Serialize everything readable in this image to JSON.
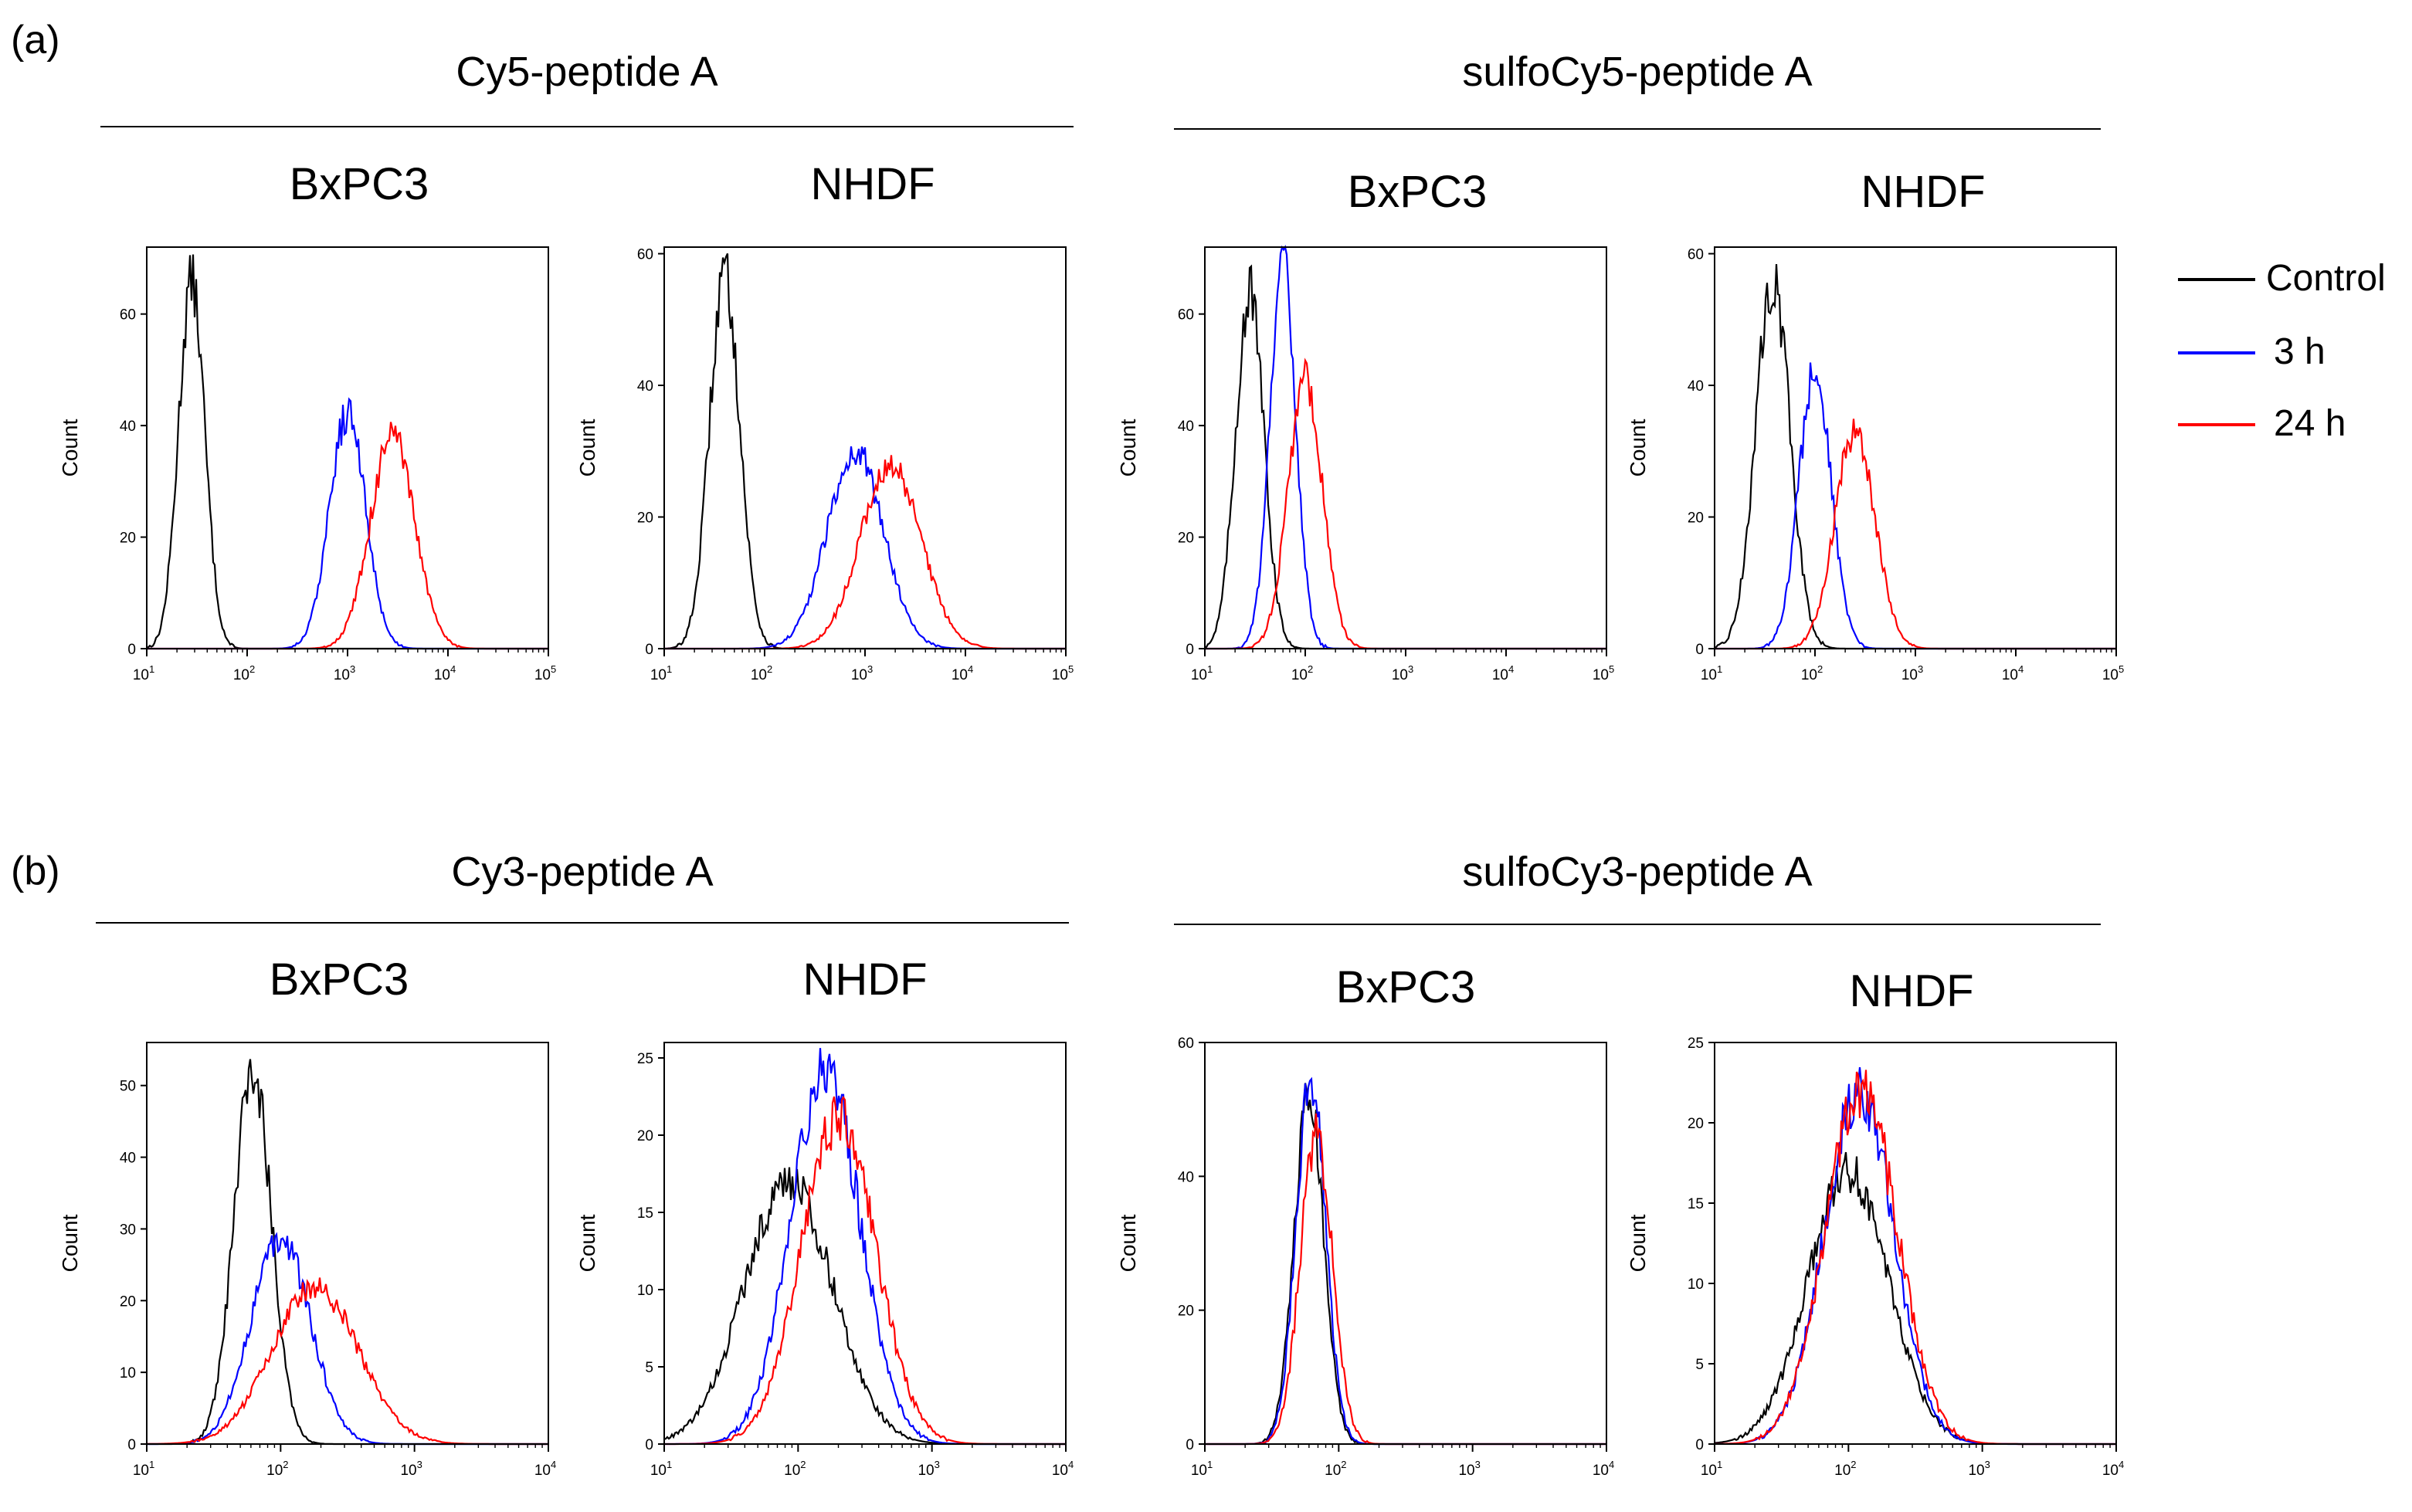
{
  "panels": [
    {
      "letter": "(a)",
      "groups": [
        {
          "title": "Cy5-peptide A",
          "cells": [
            {
              "title": "BxPC3",
              "ylabel": "Count",
              "chart": 0
            },
            {
              "title": "NHDF",
              "ylabel": "Count",
              "chart": 1
            }
          ]
        },
        {
          "title": "sulfoCy5-peptide A",
          "cells": [
            {
              "title": "BxPC3",
              "ylabel": "Count",
              "chart": 2
            },
            {
              "title": "NHDF",
              "ylabel": "Count",
              "chart": 3
            }
          ]
        }
      ]
    },
    {
      "letter": "(b)",
      "groups": [
        {
          "title": "Cy3-peptide A",
          "cells": [
            {
              "title": "BxPC3",
              "ylabel": "Count",
              "chart": 4
            },
            {
              "title": "NHDF",
              "ylabel": "Count",
              "chart": 5
            }
          ]
        },
        {
          "title": "sulfoCy3-peptide A",
          "cells": [
            {
              "title": "BxPC3",
              "ylabel": "Count",
              "chart": 6
            },
            {
              "title": "NHDF",
              "ylabel": "Count",
              "chart": 7
            }
          ]
        }
      ]
    }
  ],
  "legend": [
    {
      "label": "Control",
      "color": "#000000"
    },
    {
      "label": "3 h",
      "color": "#0000ff"
    },
    {
      "label": "24 h",
      "color": "#ff0000"
    }
  ],
  "chart_data": [
    {
      "type": "area",
      "title": "Cy5-peptide A BxPC3",
      "ylabel": "Count",
      "xscale": "log",
      "xlim": [
        10,
        100000
      ],
      "ylim": [
        0,
        72
      ],
      "yticks": [
        0,
        20,
        40,
        60
      ],
      "xticks": [
        {
          "base": "10",
          "exp": "1"
        },
        {
          "base": "10",
          "exp": "2"
        },
        {
          "base": "10",
          "exp": "3"
        },
        {
          "base": "10",
          "exp": "4"
        },
        {
          "base": "10",
          "exp": "5"
        }
      ],
      "series": [
        {
          "name": "Control",
          "color": "#000000",
          "peak_x": 28,
          "peak_y": 66,
          "width": 0.13
        },
        {
          "name": "3 h",
          "color": "#0000ff",
          "peak_x": 1000,
          "peak_y": 42,
          "width": 0.18
        },
        {
          "name": "24 h",
          "color": "#ff0000",
          "peak_x": 2800,
          "peak_y": 38,
          "width": 0.22
        }
      ]
    },
    {
      "type": "area",
      "title": "Cy5-peptide A NHDF",
      "ylabel": "Count",
      "xscale": "log",
      "xlim": [
        10,
        100000
      ],
      "ylim": [
        0,
        61
      ],
      "yticks": [
        0,
        20,
        40,
        60
      ],
      "xticks": [
        {
          "base": "10",
          "exp": "1"
        },
        {
          "base": "10",
          "exp": "2"
        },
        {
          "base": "10",
          "exp": "3"
        },
        {
          "base": "10",
          "exp": "4"
        },
        {
          "base": "10",
          "exp": "5"
        }
      ],
      "series": [
        {
          "name": "Control",
          "color": "#000000",
          "peak_x": 40,
          "peak_y": 57,
          "width": 0.15
        },
        {
          "name": "3 h",
          "color": "#0000ff",
          "peak_x": 800,
          "peak_y": 30,
          "width": 0.28
        },
        {
          "name": "24 h",
          "color": "#ff0000",
          "peak_x": 1800,
          "peak_y": 28,
          "width": 0.3
        }
      ]
    },
    {
      "type": "area",
      "title": "sulfoCy5-peptide A BxPC3",
      "ylabel": "Count",
      "xscale": "log",
      "xlim": [
        10,
        100000
      ],
      "ylim": [
        0,
        72
      ],
      "yticks": [
        0,
        20,
        40,
        60
      ],
      "xticks": [
        {
          "base": "10",
          "exp": "1"
        },
        {
          "base": "10",
          "exp": "2"
        },
        {
          "base": "10",
          "exp": "3"
        },
        {
          "base": "10",
          "exp": "4"
        },
        {
          "base": "10",
          "exp": "5"
        }
      ],
      "series": [
        {
          "name": "Control",
          "color": "#000000",
          "peak_x": 28,
          "peak_y": 64,
          "width": 0.14
        },
        {
          "name": "3 h",
          "color": "#0000ff",
          "peak_x": 60,
          "peak_y": 68,
          "width": 0.13
        },
        {
          "name": "24 h",
          "color": "#ff0000",
          "peak_x": 100,
          "peak_y": 48,
          "width": 0.17
        }
      ]
    },
    {
      "type": "area",
      "title": "sulfoCy5-peptide A NHDF",
      "ylabel": "Count",
      "xscale": "log",
      "xlim": [
        10,
        100000
      ],
      "ylim": [
        0,
        61
      ],
      "yticks": [
        0,
        20,
        40,
        60
      ],
      "xticks": [
        {
          "base": "10",
          "exp": "1"
        },
        {
          "base": "10",
          "exp": "2"
        },
        {
          "base": "10",
          "exp": "3"
        },
        {
          "base": "10",
          "exp": "4"
        },
        {
          "base": "10",
          "exp": "5"
        }
      ],
      "series": [
        {
          "name": "Control",
          "color": "#000000",
          "peak_x": 38,
          "peak_y": 56,
          "width": 0.17
        },
        {
          "name": "3 h",
          "color": "#0000ff",
          "peak_x": 100,
          "peak_y": 42,
          "width": 0.16
        },
        {
          "name": "24 h",
          "color": "#ff0000",
          "peak_x": 250,
          "peak_y": 33,
          "width": 0.2
        }
      ]
    },
    {
      "type": "area",
      "title": "Cy3-peptide A BxPC3",
      "ylabel": "Count",
      "xscale": "log",
      "xlim": [
        10,
        10000
      ],
      "ylim": [
        0,
        56
      ],
      "yticks": [
        0,
        10,
        20,
        30,
        40,
        50
      ],
      "xticks": [
        {
          "base": "10",
          "exp": "1"
        },
        {
          "base": "10",
          "exp": "2"
        },
        {
          "base": "10",
          "exp": "3"
        },
        {
          "base": "10",
          "exp": "4"
        }
      ],
      "series": [
        {
          "name": "Control",
          "color": "#000000",
          "peak_x": 62,
          "peak_y": 52,
          "width": 0.14
        },
        {
          "name": "3 h",
          "color": "#0000ff",
          "peak_x": 100,
          "peak_y": 29,
          "width": 0.22
        },
        {
          "name": "24 h",
          "color": "#ff0000",
          "peak_x": 180,
          "peak_y": 22,
          "width": 0.32
        }
      ]
    },
    {
      "type": "area",
      "title": "Cy3-peptide A NHDF",
      "ylabel": "Count",
      "xscale": "log",
      "xlim": [
        10,
        10000
      ],
      "ylim": [
        0,
        26
      ],
      "yticks": [
        0,
        5,
        10,
        15,
        20,
        25
      ],
      "xticks": [
        {
          "base": "10",
          "exp": "1"
        },
        {
          "base": "10",
          "exp": "2"
        },
        {
          "base": "10",
          "exp": "3"
        },
        {
          "base": "10",
          "exp": "4"
        }
      ],
      "series": [
        {
          "name": "Control",
          "color": "#000000",
          "peak_x": 85,
          "peak_y": 17,
          "width": 0.33
        },
        {
          "name": "3 h",
          "color": "#0000ff",
          "peak_x": 160,
          "peak_y": 24,
          "width": 0.26
        },
        {
          "name": "24 h",
          "color": "#ff0000",
          "peak_x": 200,
          "peak_y": 21,
          "width": 0.28
        }
      ]
    },
    {
      "type": "area",
      "title": "sulfoCy3-peptide A BxPC3",
      "ylabel": "Count",
      "xscale": "log",
      "xlim": [
        10,
        10000
      ],
      "ylim": [
        0,
        60
      ],
      "yticks": [
        0,
        20,
        40,
        60
      ],
      "xticks": [
        {
          "base": "10",
          "exp": "1"
        },
        {
          "base": "10",
          "exp": "2"
        },
        {
          "base": "10",
          "exp": "3"
        },
        {
          "base": "10",
          "exp": "4"
        }
      ],
      "series": [
        {
          "name": "Control",
          "color": "#000000",
          "peak_x": 60,
          "peak_y": 52,
          "width": 0.11
        },
        {
          "name": "3 h",
          "color": "#0000ff",
          "peak_x": 62,
          "peak_y": 54,
          "width": 0.11
        },
        {
          "name": "24 h",
          "color": "#ff0000",
          "peak_x": 68,
          "peak_y": 46,
          "width": 0.12
        }
      ]
    },
    {
      "type": "area",
      "title": "sulfoCy3-peptide A NHDF",
      "ylabel": "Count",
      "xscale": "log",
      "xlim": [
        10,
        10000
      ],
      "ylim": [
        0,
        25
      ],
      "yticks": [
        0,
        5,
        10,
        15,
        20,
        25
      ],
      "xticks": [
        {
          "base": "10",
          "exp": "1"
        },
        {
          "base": "10",
          "exp": "2"
        },
        {
          "base": "10",
          "exp": "3"
        },
        {
          "base": "10",
          "exp": "4"
        }
      ],
      "series": [
        {
          "name": "Control",
          "color": "#000000",
          "peak_x": 100,
          "peak_y": 17,
          "width": 0.3
        },
        {
          "name": "3 h",
          "color": "#0000ff",
          "peak_x": 120,
          "peak_y": 22,
          "width": 0.26
        },
        {
          "name": "24 h",
          "color": "#ff0000",
          "peak_x": 125,
          "peak_y": 22,
          "width": 0.27
        }
      ]
    }
  ]
}
